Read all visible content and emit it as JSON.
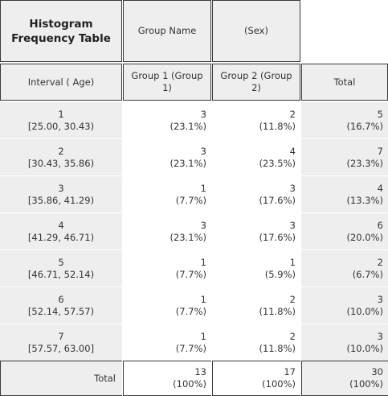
{
  "header": {
    "title_line1": "Histogram",
    "title_line2": "Frequency Table",
    "group_name": "Group Name",
    "sex": "(Sex)"
  },
  "columns": {
    "interval": "Interval ( Age)",
    "group1": "Group 1 (Group 1)",
    "group2": "Group 2 (Group 2)",
    "total": "Total"
  },
  "rows": [
    {
      "index": "1",
      "range": "[25.00, 30.43)",
      "g1": "3",
      "g1_pct": "(23.1%)",
      "g2": "2",
      "g2_pct": "(11.8%)",
      "total": "5",
      "total_pct": "(16.7%)"
    },
    {
      "index": "2",
      "range": "[30.43, 35.86)",
      "g1": "3",
      "g1_pct": "(23.1%)",
      "g2": "4",
      "g2_pct": "(23.5%)",
      "total": "7",
      "total_pct": "(23.3%)"
    },
    {
      "index": "3",
      "range": "[35.86, 41.29)",
      "g1": "1",
      "g1_pct": "(7.7%)",
      "g2": "3",
      "g2_pct": "(17.6%)",
      "total": "4",
      "total_pct": "(13.3%)"
    },
    {
      "index": "4",
      "range": "[41.29, 46.71)",
      "g1": "3",
      "g1_pct": "(23.1%)",
      "g2": "3",
      "g2_pct": "(17.6%)",
      "total": "6",
      "total_pct": "(20.0%)"
    },
    {
      "index": "5",
      "range": "[46.71, 52.14)",
      "g1": "1",
      "g1_pct": "(7.7%)",
      "g2": "1",
      "g2_pct": "(5.9%)",
      "total": "2",
      "total_pct": "(6.7%)"
    },
    {
      "index": "6",
      "range": "[52.14, 57.57)",
      "g1": "1",
      "g1_pct": "(7.7%)",
      "g2": "2",
      "g2_pct": "(11.8%)",
      "total": "3",
      "total_pct": "(10.0%)"
    },
    {
      "index": "7",
      "range": "[57.57, 63.00]",
      "g1": "1",
      "g1_pct": "(7.7%)",
      "g2": "2",
      "g2_pct": "(11.8%)",
      "total": "3",
      "total_pct": "(10.0%)"
    }
  ],
  "footer": {
    "label": "Total",
    "g1": "13",
    "g1_pct": "(100%)",
    "g2": "17",
    "g2_pct": "(100%)",
    "total": "30",
    "total_pct": "(100%)"
  }
}
